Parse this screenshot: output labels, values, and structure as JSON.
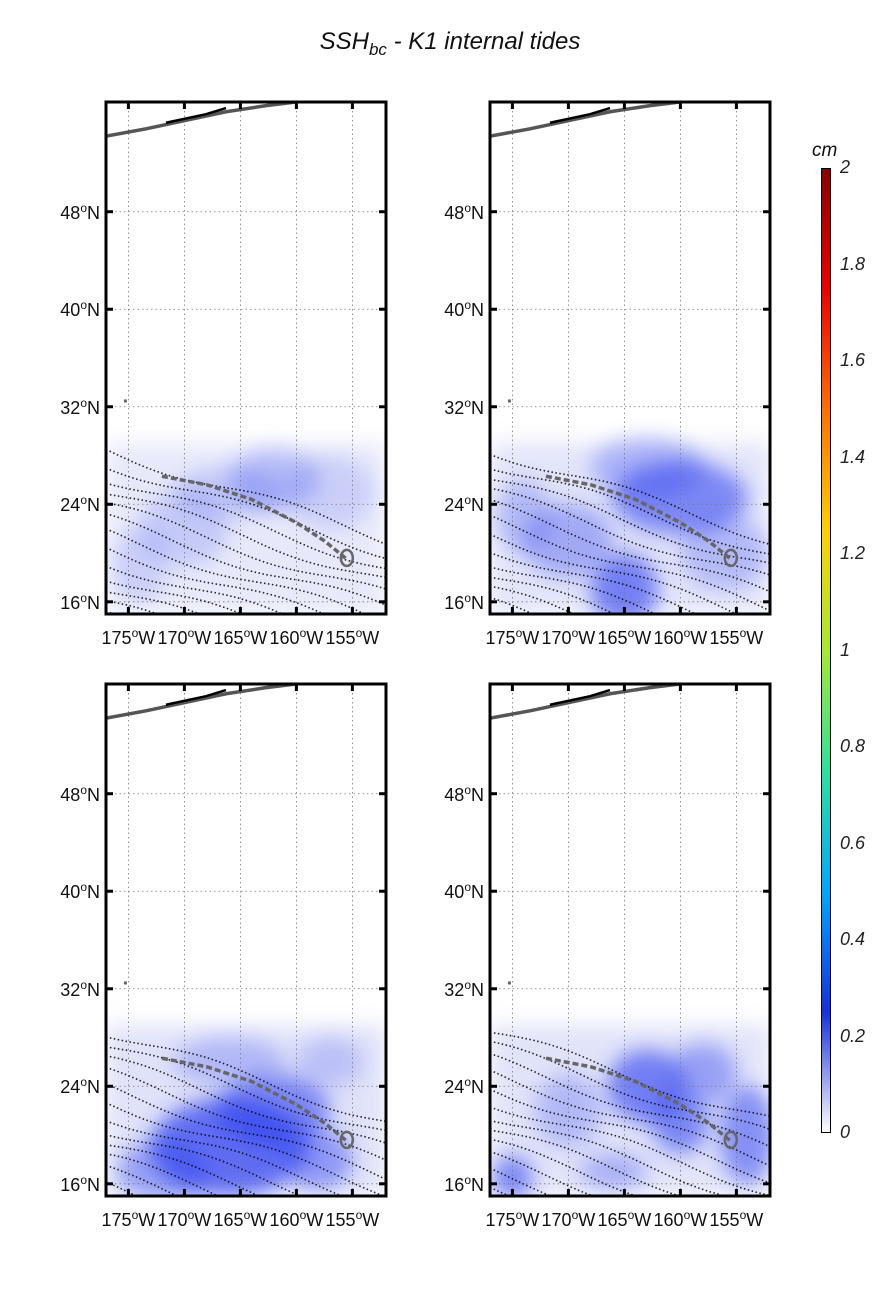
{
  "title": {
    "main": "SSH",
    "sub": "bc",
    "rest": " - K1 internal tides"
  },
  "map": {
    "lat_range": [
      15,
      57
    ],
    "lon_range": [
      -177,
      -152
    ],
    "lat_ticks": [
      {
        "value": 16,
        "label_num": "16",
        "label_dir": "N"
      },
      {
        "value": 24,
        "label_num": "24",
        "label_dir": "N"
      },
      {
        "value": 32,
        "label_num": "32",
        "label_dir": "N"
      },
      {
        "value": 40,
        "label_num": "40",
        "label_dir": "N"
      },
      {
        "value": 48,
        "label_num": "48",
        "label_dir": "N"
      }
    ],
    "lon_ticks": [
      {
        "value": -175,
        "label_num": "175",
        "label_dir": "W"
      },
      {
        "value": -170,
        "label_num": "170",
        "label_dir": "W"
      },
      {
        "value": -165,
        "label_num": "165",
        "label_dir": "W"
      },
      {
        "value": -160,
        "label_num": "160",
        "label_dir": "W"
      },
      {
        "value": -155,
        "label_num": "155",
        "label_dir": "W"
      }
    ],
    "degree_symbol": "o"
  },
  "panels": [
    {
      "id": "top-left",
      "intensity": 0.35
    },
    {
      "id": "top-right",
      "intensity": 0.8
    },
    {
      "id": "bottom-left",
      "intensity": 1.0
    },
    {
      "id": "bottom-right",
      "intensity": 0.9
    }
  ],
  "colorbar": {
    "unit": "cm",
    "min": 0,
    "max": 2,
    "ticks": [
      "0",
      "0.2",
      "0.4",
      "0.6",
      "0.8",
      "1",
      "1.2",
      "1.4",
      "1.6",
      "1.8",
      "2"
    ],
    "colors": [
      "#ffffff",
      "#1530e0",
      "#00a8ff",
      "#2ee0a0",
      "#a8e830",
      "#ffd000",
      "#ff7000",
      "#ee0000",
      "#8a0000"
    ]
  }
}
